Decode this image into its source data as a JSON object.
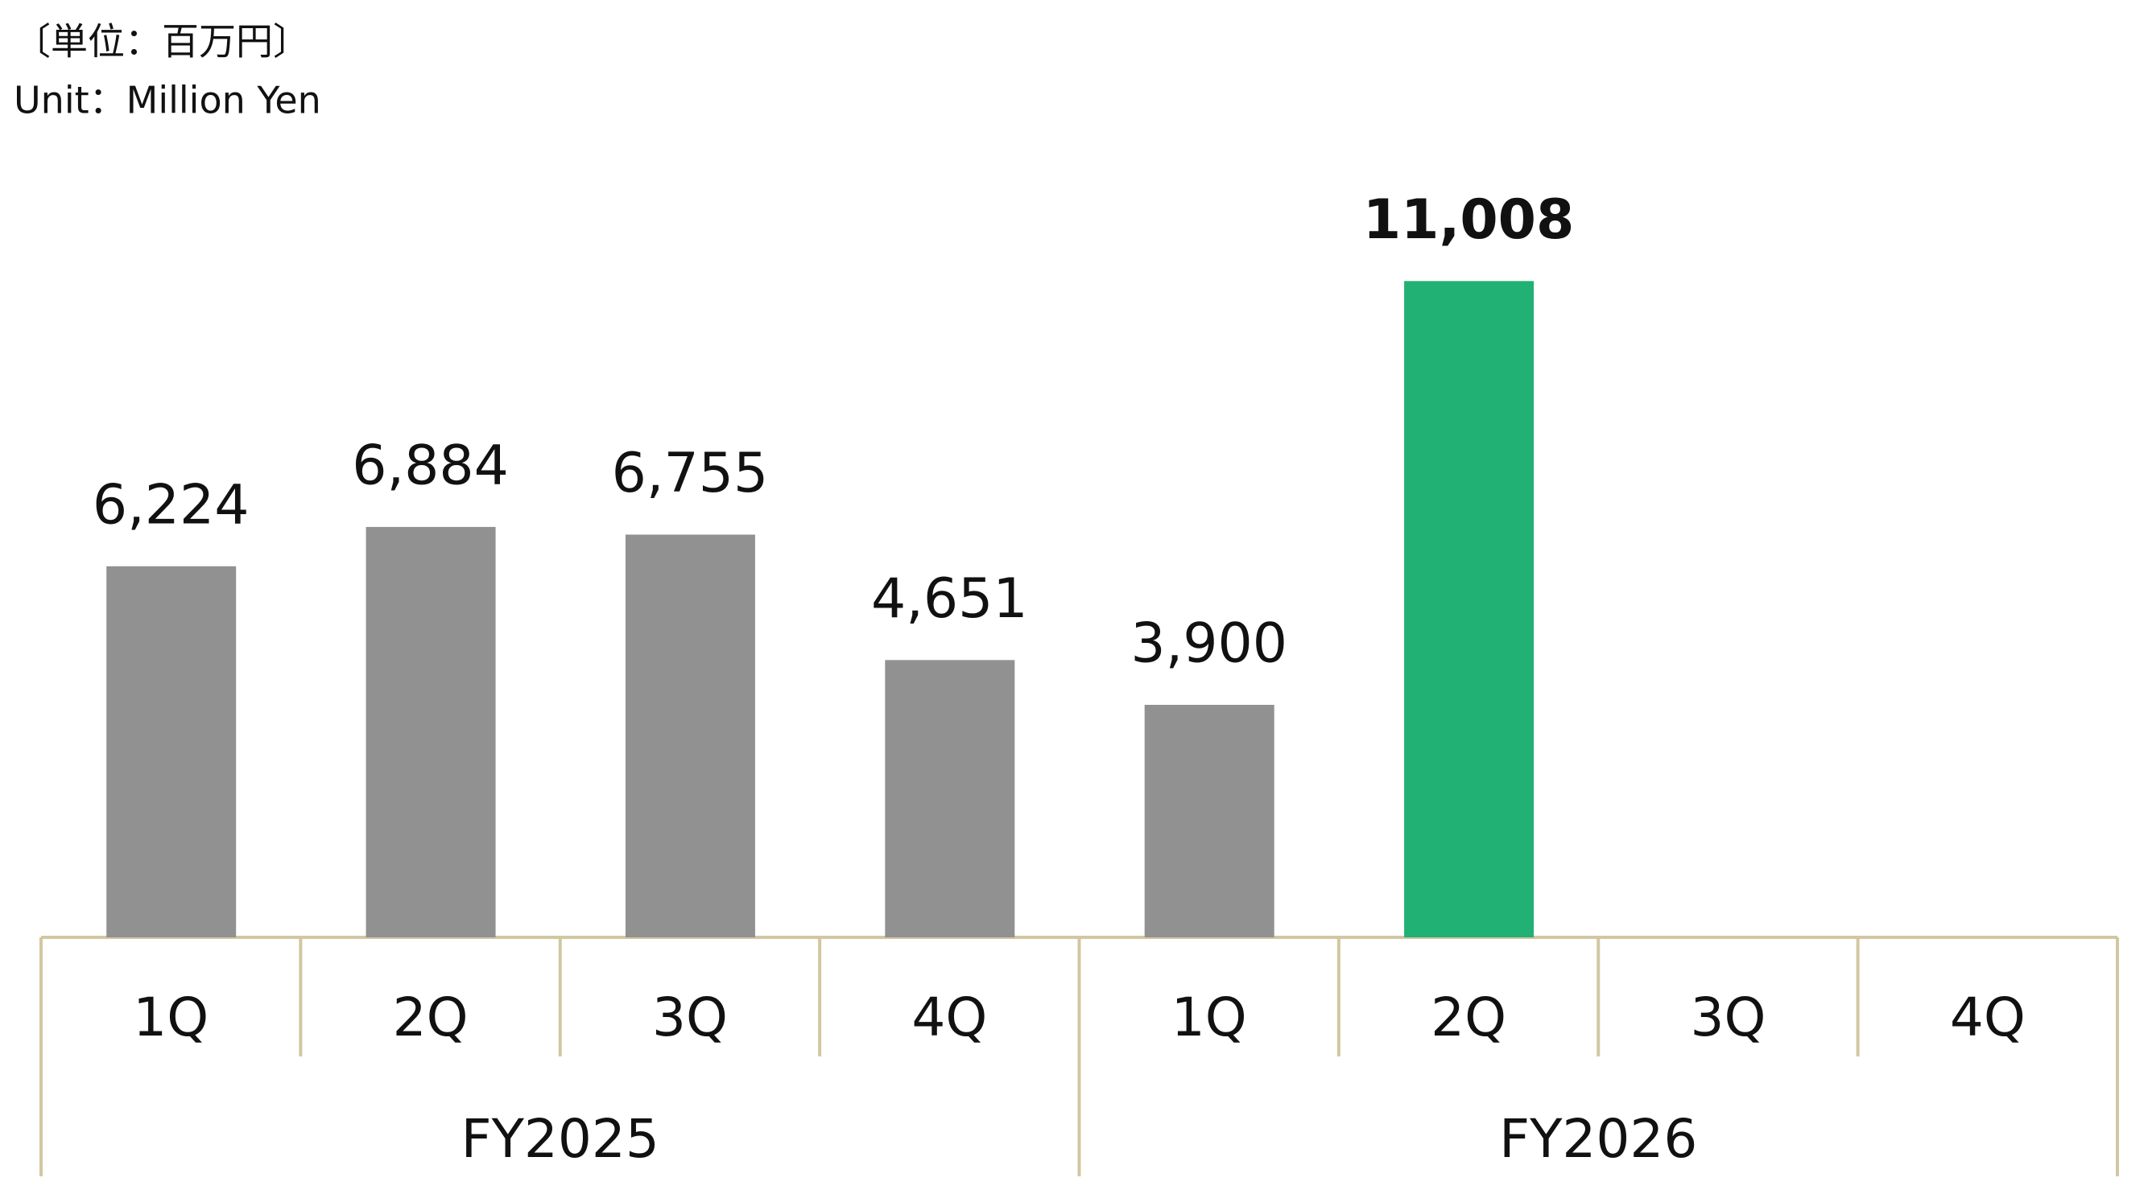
{
  "chart_data": {
    "type": "bar",
    "unit_labels": [
      "〔単位：百万円〕",
      "Unit：Million Yen"
    ],
    "categories": [
      "1Q",
      "2Q",
      "3Q",
      "4Q",
      "1Q",
      "2Q",
      "3Q",
      "4Q"
    ],
    "groups": [
      {
        "label": "FY2025",
        "size": 4
      },
      {
        "label": "FY2026",
        "size": 4
      }
    ],
    "values": [
      6224,
      6884,
      6755,
      4651,
      3900,
      11008,
      null,
      null
    ],
    "value_labels": [
      "6,224",
      "6,884",
      "6,755",
      "4,651",
      "3,900",
      "11,008",
      null,
      null
    ],
    "colors": [
      "#919191",
      "#919191",
      "#919191",
      "#919191",
      "#919191",
      "#22b174",
      null,
      null
    ],
    "axis_color": "#d2c7a1"
  }
}
